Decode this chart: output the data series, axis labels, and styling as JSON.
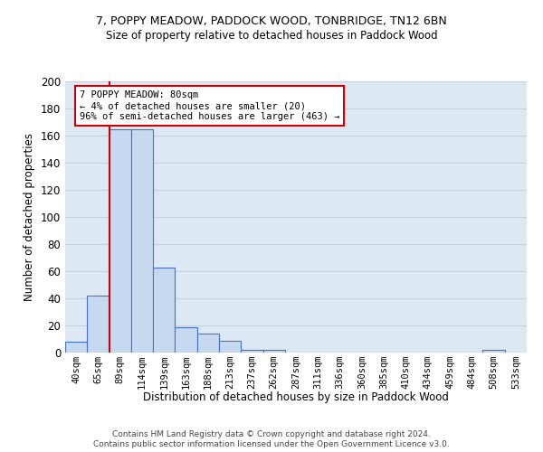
{
  "title1": "7, POPPY MEADOW, PADDOCK WOOD, TONBRIDGE, TN12 6BN",
  "title2": "Size of property relative to detached houses in Paddock Wood",
  "xlabel": "Distribution of detached houses by size in Paddock Wood",
  "ylabel": "Number of detached properties",
  "footnote1": "Contains HM Land Registry data © Crown copyright and database right 2024.",
  "footnote2": "Contains public sector information licensed under the Open Government Licence v3.0.",
  "bin_labels": [
    "40sqm",
    "65sqm",
    "89sqm",
    "114sqm",
    "139sqm",
    "163sqm",
    "188sqm",
    "213sqm",
    "237sqm",
    "262sqm",
    "287sqm",
    "311sqm",
    "336sqm",
    "360sqm",
    "385sqm",
    "410sqm",
    "434sqm",
    "459sqm",
    "484sqm",
    "508sqm",
    "533sqm"
  ],
  "bar_heights": [
    8,
    42,
    165,
    165,
    63,
    19,
    14,
    9,
    2,
    2,
    0,
    0,
    0,
    0,
    0,
    0,
    0,
    0,
    0,
    2,
    0
  ],
  "bar_color": "#c6d9f1",
  "bar_edge_color": "#4472c4",
  "grid_color": "#c8d0e0",
  "background_color": "#dde8f5",
  "red_line_x": 1.5,
  "annotation_text": "7 POPPY MEADOW: 80sqm\n← 4% of detached houses are smaller (20)\n96% of semi-detached houses are larger (463) →",
  "annotation_box_color": "#ffffff",
  "annotation_box_edge": "#cc0000",
  "ylim": [
    0,
    200
  ],
  "yticks": [
    0,
    20,
    40,
    60,
    80,
    100,
    120,
    140,
    160,
    180,
    200
  ]
}
